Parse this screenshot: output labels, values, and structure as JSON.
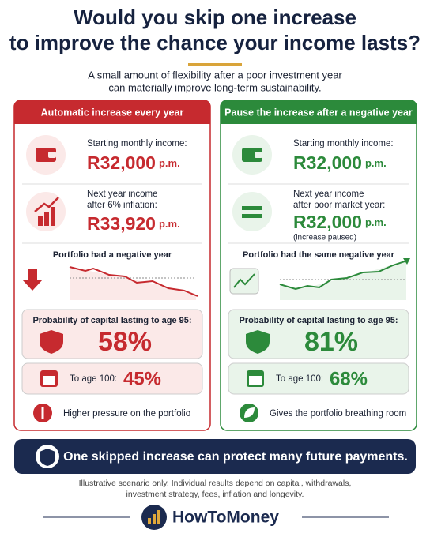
{
  "header": {
    "title_line1": "Would you skip one increase",
    "title_line2": "to improve the chance your income lasts?",
    "subtitle_line1": "A small amount of flexibility after a poor investment year",
    "subtitle_line2": "can materially improve long-term sustainability."
  },
  "left": {
    "heading": "Automatic increase every year",
    "start_label": "Starting monthly income:",
    "start_amount": "R32,000",
    "start_unit": "p.m.",
    "next_label_1": "Next year income",
    "next_label_2": "after 6% inflation:",
    "next_amount": "R33,920",
    "next_unit": "p.m.",
    "portfolio": "Portfolio had a negative year",
    "prob_label": "Probability of capital lasting to age 95:",
    "prob_value": "58%",
    "age100_label": "To age 100:",
    "age100_value": "45%",
    "footer": "Higher pressure on the portfolio"
  },
  "right": {
    "heading": "Pause the increase after a negative year",
    "start_label": "Starting monthly income:",
    "start_amount": "R32,000",
    "start_unit": "p.m.",
    "next_label_1": "Next year income",
    "next_label_2": "after poor market year:",
    "next_amount": "R32,000",
    "next_unit": "p.m.",
    "next_note": "(increase paused)",
    "portfolio": "Portfolio had the same negative year",
    "prob_label": "Probability of capital lasting to age 95:",
    "prob_value": "81%",
    "age100_label": "To age 100:",
    "age100_value": "68%",
    "footer": "Gives the portfolio breathing room"
  },
  "banner": "One skipped increase can protect many future payments.",
  "disclaimer_line1": "Illustrative scenario only. Individual results depend on capital, withdrawals,",
  "disclaimer_line2": "investment strategy, fees, inflation and longevity.",
  "brand": "HowToMoney"
}
